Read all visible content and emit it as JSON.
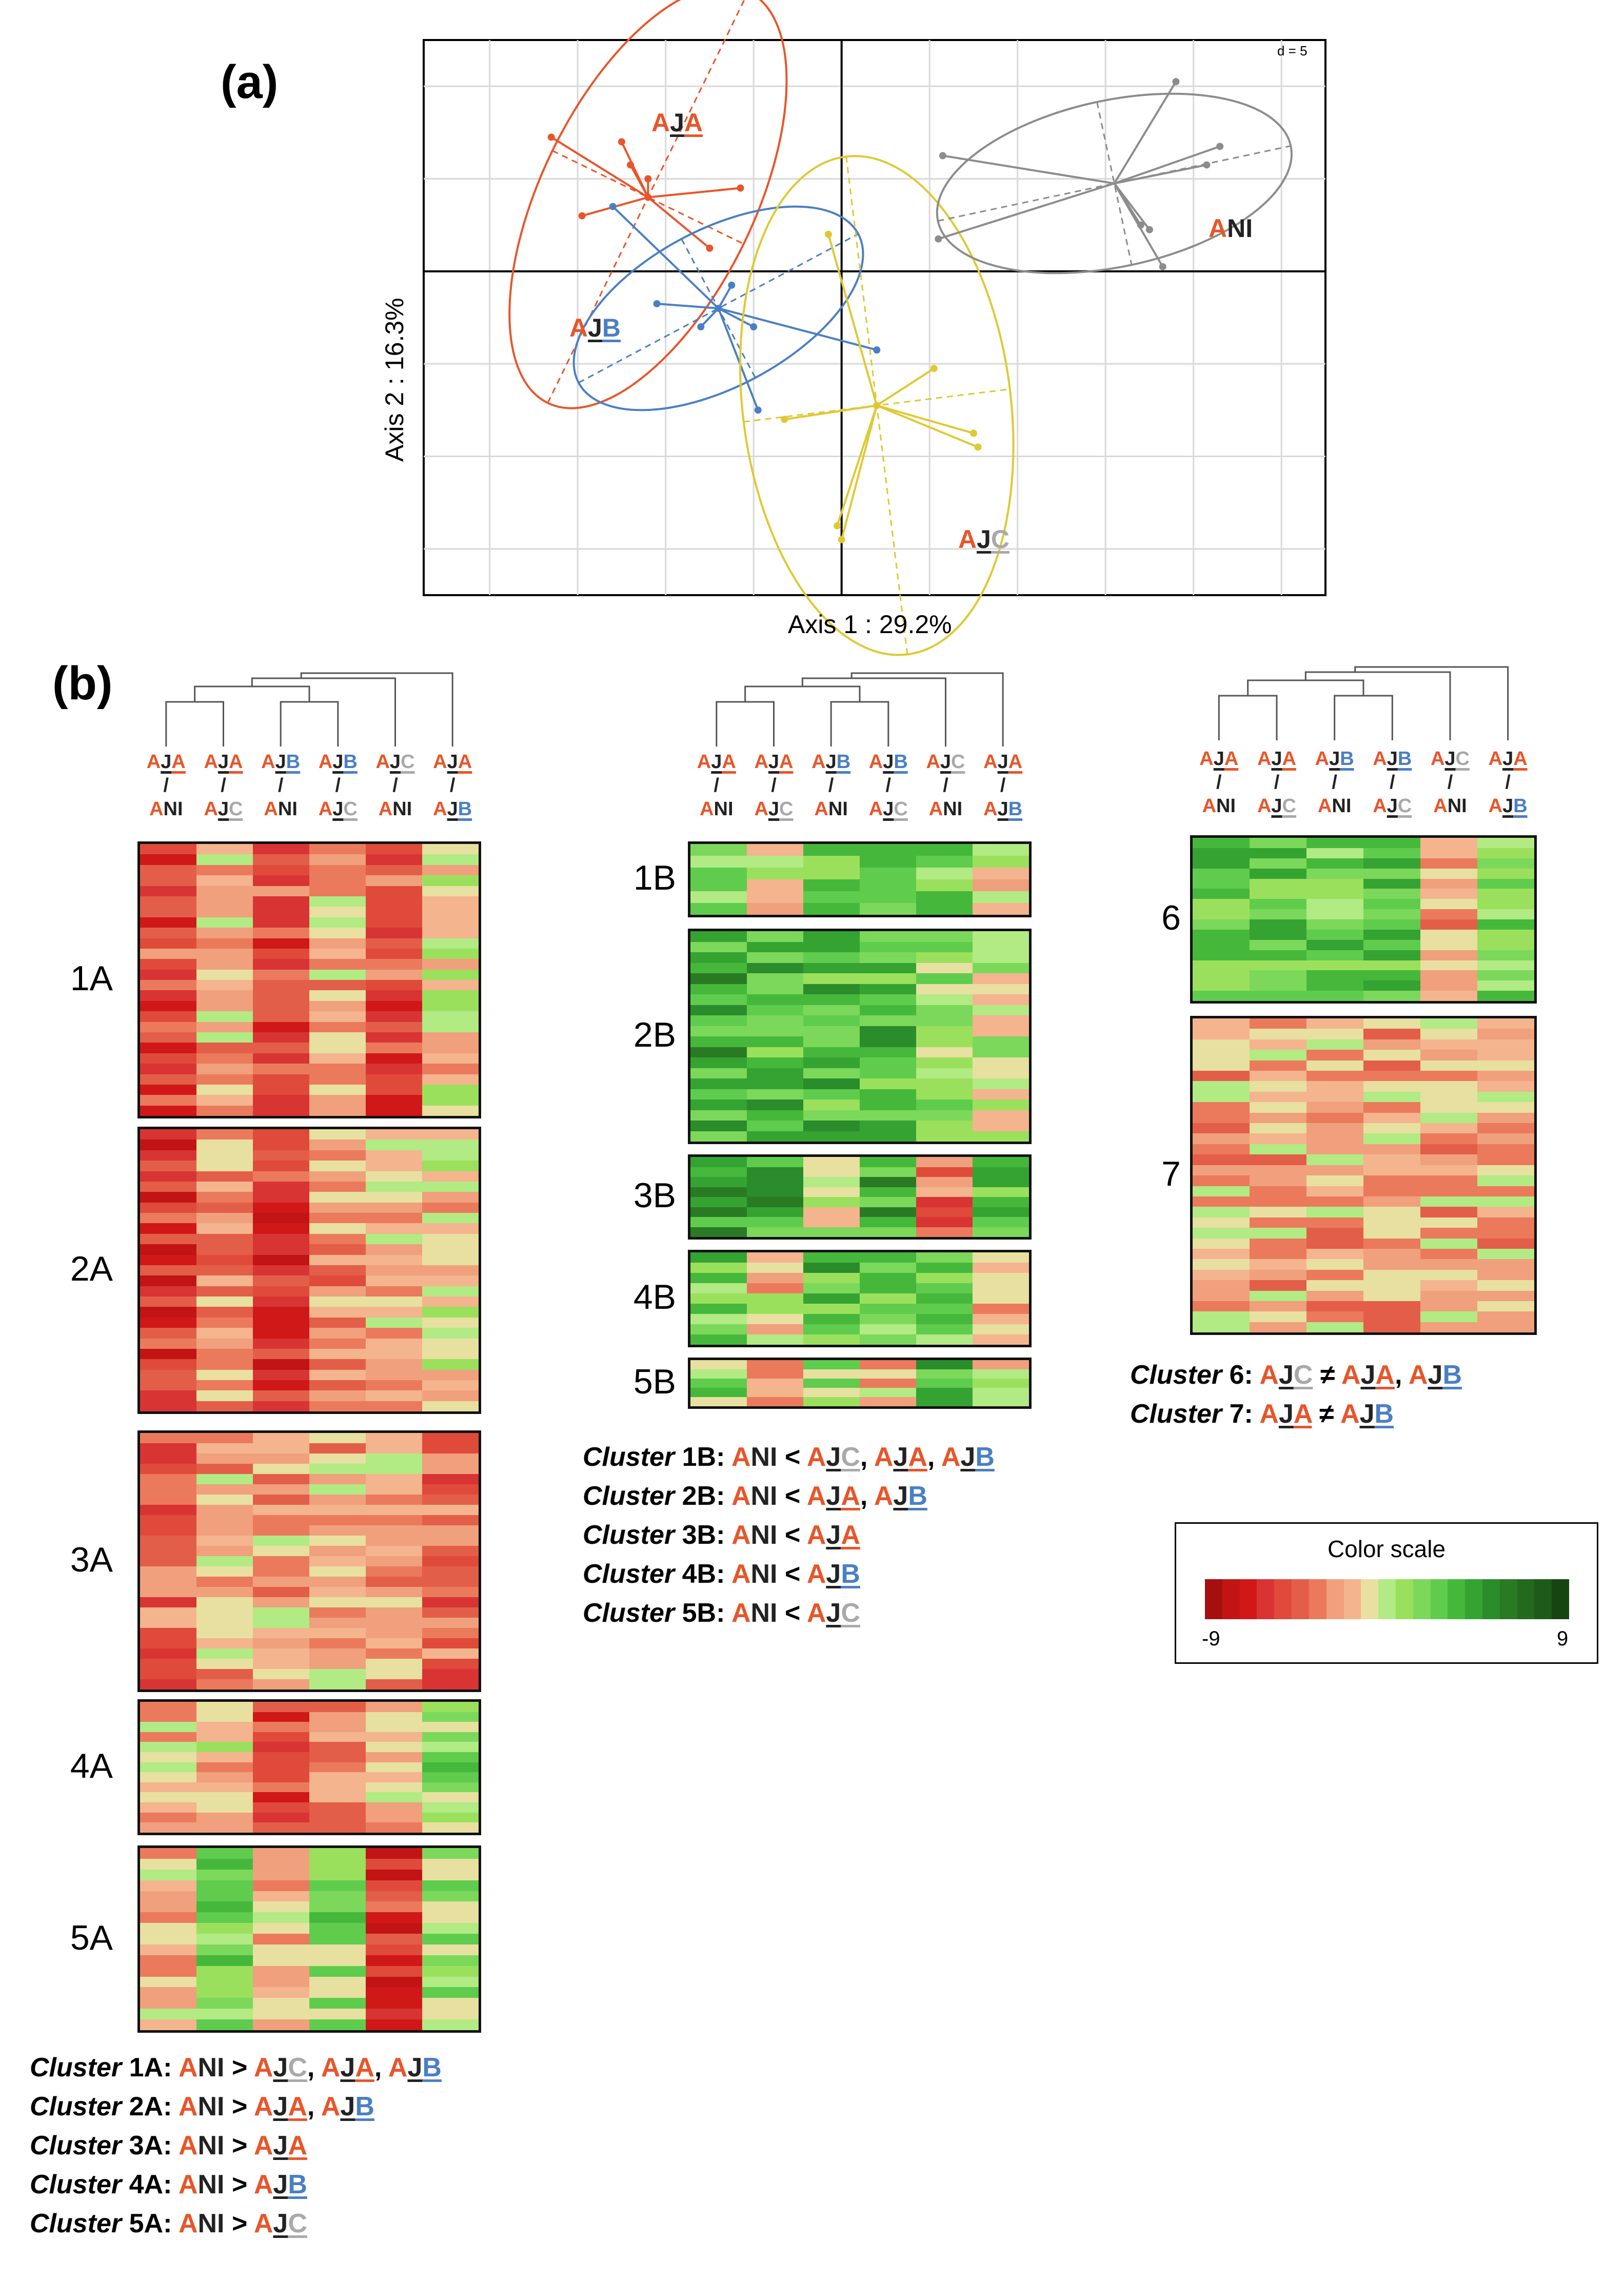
{
  "panel_a": {
    "label": "(a)",
    "xlabel": "Axis 1 : 29.2%",
    "ylabel": "Axis 2 : 16.3%",
    "scale_note": "d = 5"
  },
  "panel_b": {
    "label": "(b)"
  },
  "group_label_parts": {
    "AJA": [
      {
        "t": "A",
        "c": "A"
      },
      {
        "t": "J",
        "c": "K",
        "u": true
      },
      {
        "t": "A",
        "c": "A",
        "u": true
      }
    ],
    "AJB": [
      {
        "t": "A",
        "c": "A"
      },
      {
        "t": "J",
        "c": "K",
        "u": true
      },
      {
        "t": "B",
        "c": "B",
        "u": true
      }
    ],
    "AJC": [
      {
        "t": "A",
        "c": "A"
      },
      {
        "t": "J",
        "c": "K",
        "u": true
      },
      {
        "t": "C",
        "c": "C",
        "u": true
      }
    ],
    "ANI": [
      {
        "t": "A",
        "c": "A"
      },
      {
        "t": "NI",
        "c": "K"
      }
    ]
  },
  "chart_data": [
    {
      "type": "scatter",
      "title": "",
      "xlabel": "Axis 1 : 29.2%",
      "ylabel": "Axis 2 : 16.3%",
      "xlim": [
        -9.5,
        11
      ],
      "ylim": [
        -7,
        5
      ],
      "grid": true,
      "series": [
        {
          "name": "AJA",
          "color": "#e8552a",
          "center": [
            -4.4,
            1.6
          ],
          "ellipse": {
            "rx": 5.2,
            "ry": 2.3,
            "angle_deg": -64
          },
          "points": [
            [
              -6.6,
              2.9
            ],
            [
              -5.0,
              2.8
            ],
            [
              -4.8,
              2.3
            ],
            [
              -4.4,
              2.0
            ],
            [
              -2.3,
              1.8
            ],
            [
              -5.9,
              1.2
            ],
            [
              -3.0,
              0.5
            ],
            [
              -4.4,
              1.6
            ]
          ]
        },
        {
          "name": "AJB",
          "color": "#4a7fc4",
          "center": [
            -2.8,
            -0.8
          ],
          "ellipse": {
            "rx": 3.6,
            "ry": 1.7,
            "angle_deg": -28
          },
          "points": [
            [
              -5.2,
              1.4
            ],
            [
              -4.2,
              -0.7
            ],
            [
              -3.2,
              -1.2
            ],
            [
              -2.5,
              -0.3
            ],
            [
              -2.0,
              -1.2
            ],
            [
              0.8,
              -1.7
            ],
            [
              -1.9,
              -3.0
            ],
            [
              -2.8,
              -0.8
            ]
          ]
        },
        {
          "name": "AJC",
          "color": "#e0c832",
          "center": [
            0.8,
            -2.9
          ],
          "ellipse": {
            "rx": 5.7,
            "ry": 2.9,
            "angle_deg": -97
          },
          "points": [
            [
              -0.3,
              0.8
            ],
            [
              2.1,
              -2.1
            ],
            [
              3.0,
              -3.5
            ],
            [
              3.1,
              -3.8
            ],
            [
              -1.3,
              -3.2
            ],
            [
              -0.1,
              -5.5
            ],
            [
              0.0,
              -5.8
            ],
            [
              0.8,
              -2.9
            ]
          ]
        },
        {
          "name": "ANI",
          "color": "#8c8c8c",
          "center": [
            6.2,
            1.9
          ],
          "ellipse": {
            "rx": 4.1,
            "ry": 1.8,
            "angle_deg": -12
          },
          "points": [
            [
              2.3,
              2.5
            ],
            [
              7.6,
              4.1
            ],
            [
              8.6,
              2.7
            ],
            [
              8.3,
              2.3
            ],
            [
              2.2,
              0.7
            ],
            [
              6.8,
              1.0
            ],
            [
              7.0,
              0.9
            ],
            [
              7.3,
              0.1
            ]
          ]
        }
      ]
    },
    {
      "type": "heatmap",
      "title": "Color scale",
      "scale_range": [
        -9,
        9
      ],
      "scale_min_label": "-9",
      "scale_max_label": "9",
      "palette": [
        "#a50f0f",
        "#c21414",
        "#d01818",
        "#d83434",
        "#e04a3a",
        "#e35e48",
        "#eb7a5c",
        "#f0a07c",
        "#f4b48e",
        "#e7e0a0",
        "#b2ea84",
        "#9be05c",
        "#7cd85a",
        "#5fcc4e",
        "#45b83b",
        "#34a332",
        "#2a8c2a",
        "#2a7a24",
        "#236a1e",
        "#1e5a18",
        "#164512"
      ],
      "column_comparisons": [
        {
          "key": "AJA/ANI"
        },
        {
          "key": "AJA/AJC"
        },
        {
          "key": "AJB/ANI"
        },
        {
          "key": "AJB/AJC"
        },
        {
          "key": "AJC/ANI"
        },
        {
          "key": "AJA/AJB"
        }
      ],
      "heatmap_groups": [
        {
          "clusters": [
            {
              "name": "1A",
              "rows": 26,
              "mean": [
                -5,
                -2,
                -5,
                -2,
                -5,
                -1
              ]
            },
            {
              "name": "2A",
              "rows": 27,
              "mean": [
                -6,
                -3,
                -6,
                -3,
                -2,
                -1
              ]
            },
            {
              "name": "3A",
              "rows": 25,
              "mean": [
                -4,
                -2,
                -2,
                -2,
                -2,
                -4
              ]
            },
            {
              "name": "4A",
              "rows": 13,
              "mean": [
                -2,
                -1,
                -5,
                -3,
                -2,
                1
              ]
            },
            {
              "name": "5A",
              "rows": 17,
              "mean": [
                -2,
                2,
                -2,
                1,
                -6,
                1
              ]
            }
          ]
        },
        {
          "clusters": [
            {
              "name": "1B",
              "rows": 6,
              "mean": [
                2,
                -1,
                2,
                2,
                2,
                -1
              ]
            },
            {
              "name": "2B",
              "rows": 20,
              "mean": [
                4,
                3,
                3,
                3,
                1,
                0
              ]
            },
            {
              "name": "3B",
              "rows": 8,
              "mean": [
                5,
                4,
                0,
                4,
                -4,
                3
              ]
            },
            {
              "name": "4B",
              "rows": 9,
              "mean": [
                2,
                -1,
                3,
                2,
                2,
                -2
              ]
            },
            {
              "name": "5B",
              "rows": 5,
              "mean": [
                1,
                -2,
                1,
                -2,
                3,
                -1
              ]
            }
          ]
        },
        {
          "clusters": [
            {
              "name": "6",
              "rows": 16,
              "mean": [
                3,
                3,
                2,
                3,
                -3,
                2
              ]
            },
            {
              "name": "7",
              "rows": 30,
              "mean": [
                -2,
                -2,
                -2,
                -2,
                -2,
                -2
              ]
            }
          ]
        }
      ]
    }
  ],
  "cluster_notes_A": [
    [
      {
        "t": "Cluster ",
        "k": "cl"
      },
      {
        "t": "1A",
        "k": "n"
      },
      {
        "t": ": ",
        "k": "n"
      },
      {
        "g": "ANI"
      },
      {
        "t": " > ",
        "k": "n"
      },
      {
        "g": "AJC"
      },
      {
        "t": ", ",
        "k": "n"
      },
      {
        "g": "AJA"
      },
      {
        "t": ", ",
        "k": "n"
      },
      {
        "g": "AJB"
      }
    ],
    [
      {
        "t": "Cluster ",
        "k": "cl"
      },
      {
        "t": "2A",
        "k": "n"
      },
      {
        "t": ": ",
        "k": "n"
      },
      {
        "g": "ANI"
      },
      {
        "t": " > ",
        "k": "n"
      },
      {
        "g": "AJA"
      },
      {
        "t": ", ",
        "k": "n"
      },
      {
        "g": "AJB"
      }
    ],
    [
      {
        "t": "Cluster ",
        "k": "cl"
      },
      {
        "t": "3A",
        "k": "n"
      },
      {
        "t": ": ",
        "k": "n"
      },
      {
        "g": "ANI"
      },
      {
        "t": " > ",
        "k": "n"
      },
      {
        "g": "AJA"
      }
    ],
    [
      {
        "t": "Cluster ",
        "k": "cl"
      },
      {
        "t": "4A",
        "k": "n"
      },
      {
        "t": ": ",
        "k": "n"
      },
      {
        "g": "ANI"
      },
      {
        "t": " > ",
        "k": "n"
      },
      {
        "g": "AJB"
      }
    ],
    [
      {
        "t": "Cluster ",
        "k": "cl"
      },
      {
        "t": "5A",
        "k": "n"
      },
      {
        "t": ": ",
        "k": "n"
      },
      {
        "g": "ANI"
      },
      {
        "t": " > ",
        "k": "n"
      },
      {
        "g": "AJC"
      }
    ]
  ],
  "cluster_notes_B": [
    [
      {
        "t": "Cluster ",
        "k": "cl"
      },
      {
        "t": "1B",
        "k": "n"
      },
      {
        "t": ": ",
        "k": "n"
      },
      {
        "g": "ANI"
      },
      {
        "t": " < ",
        "k": "n"
      },
      {
        "g": "AJC"
      },
      {
        "t": ", ",
        "k": "n"
      },
      {
        "g": "AJA"
      },
      {
        "t": ", ",
        "k": "n"
      },
      {
        "g": "AJB"
      }
    ],
    [
      {
        "t": "Cluster ",
        "k": "cl"
      },
      {
        "t": "2B",
        "k": "n"
      },
      {
        "t": ": ",
        "k": "n"
      },
      {
        "g": "ANI"
      },
      {
        "t": " < ",
        "k": "n"
      },
      {
        "g": "AJA"
      },
      {
        "t": ", ",
        "k": "n"
      },
      {
        "g": "AJB"
      }
    ],
    [
      {
        "t": "Cluster ",
        "k": "cl"
      },
      {
        "t": "3B",
        "k": "n"
      },
      {
        "t": ": ",
        "k": "n"
      },
      {
        "g": "ANI"
      },
      {
        "t": " < ",
        "k": "n"
      },
      {
        "g": "AJA"
      }
    ],
    [
      {
        "t": "Cluster ",
        "k": "cl"
      },
      {
        "t": "4B",
        "k": "n"
      },
      {
        "t": ": ",
        "k": "n"
      },
      {
        "g": "ANI"
      },
      {
        "t": " < ",
        "k": "n"
      },
      {
        "g": "AJB"
      }
    ],
    [
      {
        "t": "Cluster ",
        "k": "cl"
      },
      {
        "t": "5B",
        "k": "n"
      },
      {
        "t": ": ",
        "k": "n"
      },
      {
        "g": "ANI"
      },
      {
        "t": " < ",
        "k": "n"
      },
      {
        "g": "AJC"
      }
    ]
  ],
  "cluster_notes_C": [
    [
      {
        "t": "Cluster ",
        "k": "cl"
      },
      {
        "t": "6",
        "k": "n"
      },
      {
        "t": ": ",
        "k": "n"
      },
      {
        "g": "AJC"
      },
      {
        "t": " ≠ ",
        "k": "n"
      },
      {
        "g": "AJA"
      },
      {
        "t": ", ",
        "k": "n"
      },
      {
        "g": "AJB"
      }
    ],
    [
      {
        "t": "Cluster ",
        "k": "cl"
      },
      {
        "t": "7",
        "k": "n"
      },
      {
        "t": ": ",
        "k": "n"
      },
      {
        "g": "AJA"
      },
      {
        "t": " ≠ ",
        "k": "n"
      },
      {
        "g": "AJB"
      }
    ]
  ]
}
